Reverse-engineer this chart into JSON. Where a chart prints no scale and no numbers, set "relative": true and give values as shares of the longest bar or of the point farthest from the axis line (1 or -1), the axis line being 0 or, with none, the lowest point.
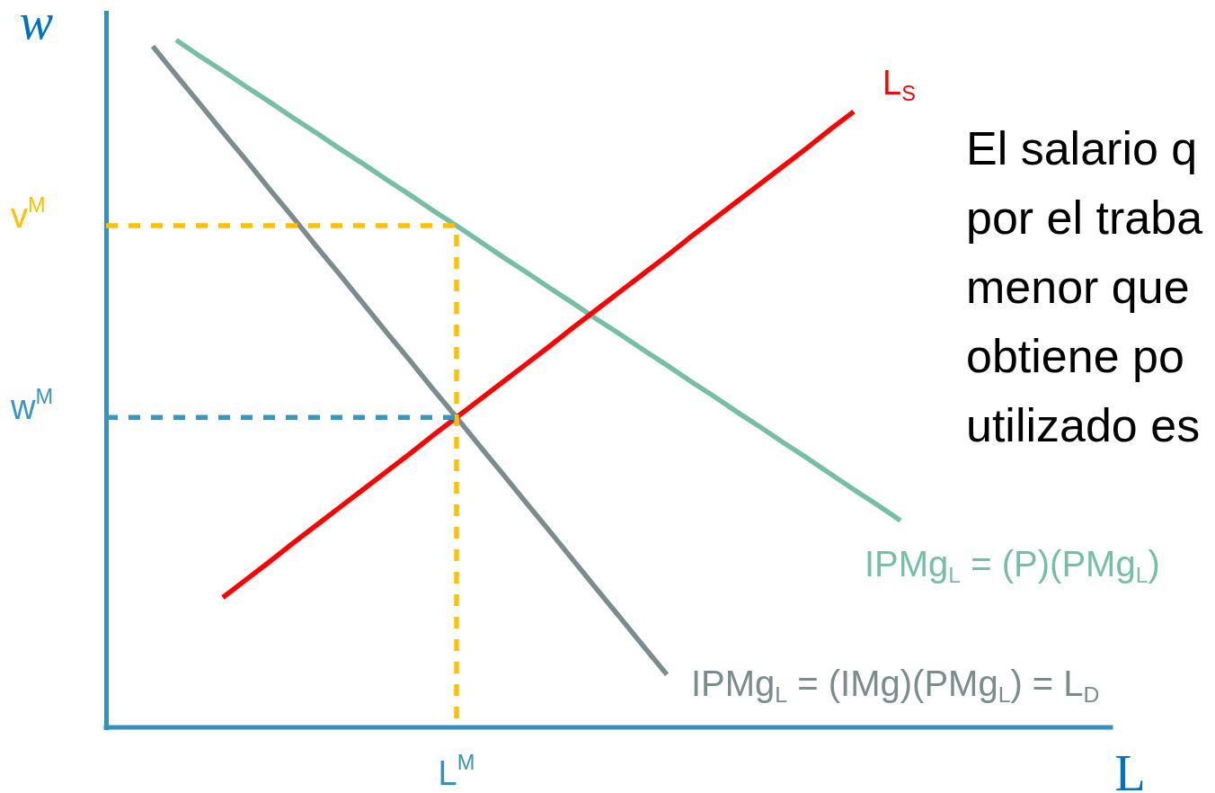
{
  "chart_data": {
    "type": "line",
    "relative": true,
    "xlabel": "L",
    "ylabel": "w",
    "categories": [
      null,
      null,
      null,
      null,
      null,
      null,
      null,
      null,
      null,
      null,
      null,
      null,
      null,
      null,
      null,
      null,
      null,
      null,
      null,
      null,
      null,
      null,
      null,
      null,
      null,
      null,
      null,
      null,
      null,
      null,
      null,
      null,
      null,
      null,
      null,
      null,
      null,
      null,
      null,
      null,
      null,
      null,
      null,
      null
    ],
    "series": [
      {
        "name": "IPMg$_{L}$ = (P)(PMg$_{L}$)",
        "color": "#76bfa5",
        "values": [
          null,
          null,
          null,
          1.0,
          0.977,
          0.955,
          0.932,
          0.91,
          0.887,
          0.865,
          0.842,
          0.82,
          0.797,
          0.775,
          0.752,
          0.73,
          0.707,
          0.684,
          0.662,
          0.639,
          0.617,
          0.594,
          0.572,
          0.549,
          0.527,
          0.504,
          0.482,
          0.459,
          0.437,
          0.414,
          0.392,
          0.369,
          0.346,
          0.324,
          0.301,
          null,
          null,
          null,
          null,
          null,
          null,
          null,
          null,
          null
        ]
      },
      {
        "name": "IPMg$_{L}$ = (IMg)(PMg$_{L}$) = L$_{D}$",
        "color": "#7a8c8d",
        "values": [
          null,
          null,
          0.991,
          0.949,
          0.908,
          0.866,
          0.825,
          0.783,
          0.742,
          0.7,
          0.659,
          0.617,
          0.575,
          0.534,
          0.492,
          0.451,
          0.409,
          0.368,
          0.326,
          0.285,
          0.243,
          0.201,
          0.16,
          0.118,
          0.077,
          null,
          null,
          null,
          null,
          null,
          null,
          null,
          null,
          null,
          null,
          null,
          null,
          null,
          null,
          null,
          null,
          null,
          null,
          null
        ]
      },
      {
        "name": "L$_{S}$",
        "color": "#ff0000",
        "values": [
          null,
          null,
          null,
          null,
          null,
          0.189,
          0.215,
          0.241,
          0.268,
          0.294,
          0.32,
          0.346,
          0.372,
          0.398,
          0.425,
          0.451,
          0.477,
          0.503,
          0.529,
          0.555,
          0.582,
          0.608,
          0.634,
          0.66,
          0.686,
          0.713,
          0.739,
          0.765,
          0.791,
          0.817,
          0.843,
          0.87,
          0.896,
          null,
          null,
          null,
          null,
          null,
          null,
          null,
          null,
          null,
          null,
          null
        ]
      },
      {
        "name": "v$^{M}$",
        "type": "step",
        "color": "#ffc000",
        "line_style": "dashed",
        "values": [
          0.73,
          0.73,
          0.73,
          0.73,
          0.73,
          0.73,
          0.73,
          0.73,
          0.73,
          0.73,
          0.73,
          0.73,
          0.73,
          0.73,
          0.73,
          0,
          null,
          null,
          null,
          null,
          null,
          null,
          null,
          null,
          null,
          null,
          null,
          null,
          null,
          null,
          null,
          null,
          null,
          null,
          null,
          null,
          null,
          null,
          null,
          null,
          null,
          null,
          null,
          null
        ]
      },
      {
        "name": "w$^{M}$",
        "color": "#3a96c0",
        "line_style": "dashed",
        "values": [
          0.451,
          0.451,
          0.451,
          0.451,
          0.451,
          0.451,
          0.451,
          0.451,
          0.451,
          0.451,
          0.451,
          0.451,
          0.451,
          0.451,
          0.451,
          0.451,
          null,
          null,
          null,
          null,
          null,
          null,
          null,
          null,
          null,
          null,
          null,
          null,
          null,
          null,
          null,
          null,
          null,
          null,
          null,
          null,
          null,
          null,
          null,
          null,
          null,
          null,
          null,
          null
        ]
      }
    ],
    "ref_lines": [
      {
        "axis": "y",
        "value": 0,
        "color": "#3592bb"
      }
    ],
    "annotations": [
      {
        "text": "L$^{M}$",
        "y": 0
      },
      "El salario q\npor el traba\nmenor que\nobtiene po\nutilizado es"
    ]
  }
}
